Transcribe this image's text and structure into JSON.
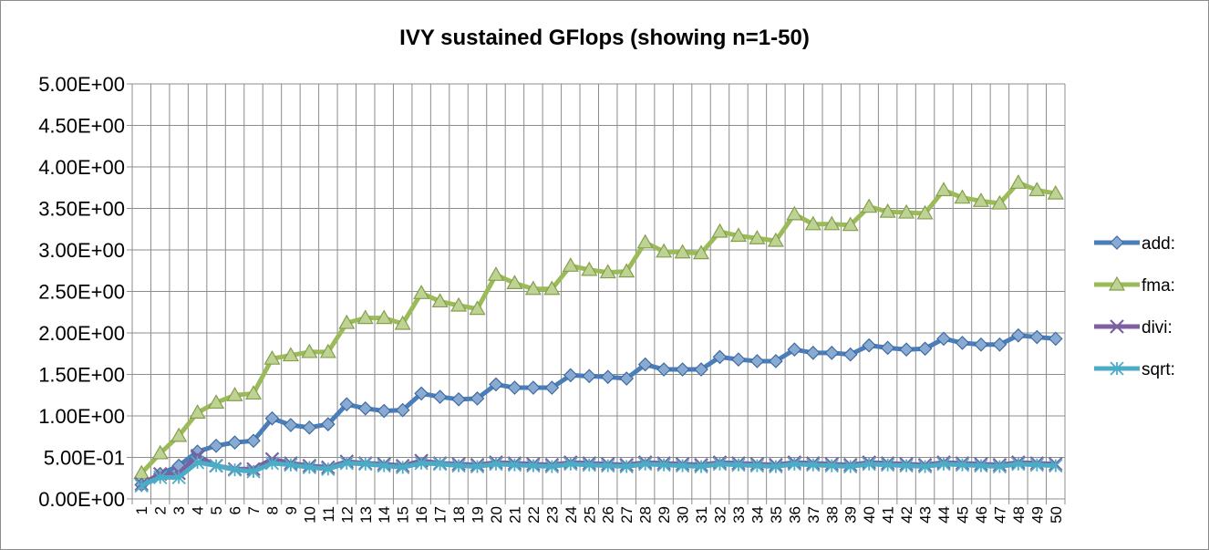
{
  "chart_data": {
    "type": "line",
    "title": "IVY sustained GFlops (showing n=1-50)",
    "xlabel": "",
    "ylabel": "",
    "ylim": [
      0,
      5
    ],
    "grid": true,
    "legend_position": "right",
    "y_ticks": [
      "0.00E+00",
      "5.00E-01",
      "1.00E+00",
      "1.50E+00",
      "2.00E+00",
      "2.50E+00",
      "3.00E+00",
      "3.50E+00",
      "4.00E+00",
      "4.50E+00",
      "5.00E+00"
    ],
    "categories": [
      "1",
      "2",
      "3",
      "4",
      "5",
      "6",
      "7",
      "8",
      "9",
      "10",
      "11",
      "12",
      "13",
      "14",
      "15",
      "16",
      "17",
      "18",
      "19",
      "20",
      "21",
      "22",
      "23",
      "24",
      "25",
      "26",
      "27",
      "28",
      "29",
      "30",
      "31",
      "32",
      "33",
      "34",
      "35",
      "36",
      "37",
      "38",
      "39",
      "40",
      "41",
      "42",
      "43",
      "44",
      "45",
      "46",
      "47",
      "48",
      "49",
      "50"
    ],
    "series": [
      {
        "name": "add:",
        "color": "#4a7ebb",
        "marker": "diamond",
        "values": [
          0.17,
          0.3,
          0.4,
          0.57,
          0.64,
          0.68,
          0.7,
          0.97,
          0.89,
          0.86,
          0.9,
          1.14,
          1.09,
          1.06,
          1.07,
          1.27,
          1.23,
          1.2,
          1.21,
          1.38,
          1.34,
          1.34,
          1.34,
          1.49,
          1.48,
          1.47,
          1.45,
          1.62,
          1.56,
          1.56,
          1.56,
          1.71,
          1.68,
          1.66,
          1.66,
          1.8,
          1.76,
          1.76,
          1.74,
          1.85,
          1.82,
          1.8,
          1.81,
          1.93,
          1.88,
          1.86,
          1.86,
          1.97,
          1.95,
          1.93
        ]
      },
      {
        "name": "fma:",
        "color": "#9bbb59",
        "marker": "triangle",
        "values": [
          0.31,
          0.55,
          0.76,
          1.04,
          1.16,
          1.25,
          1.27,
          1.69,
          1.73,
          1.77,
          1.77,
          2.12,
          2.18,
          2.18,
          2.11,
          2.48,
          2.38,
          2.33,
          2.29,
          2.7,
          2.6,
          2.53,
          2.53,
          2.81,
          2.76,
          2.73,
          2.74,
          3.09,
          2.98,
          2.97,
          2.96,
          3.22,
          3.17,
          3.14,
          3.11,
          3.43,
          3.31,
          3.31,
          3.3,
          3.52,
          3.46,
          3.45,
          3.44,
          3.72,
          3.63,
          3.59,
          3.56,
          3.81,
          3.72,
          3.68
        ]
      },
      {
        "name": "divi:",
        "color": "#7d60a0",
        "marker": "x",
        "values": [
          0.18,
          0.3,
          0.31,
          0.52,
          0.4,
          0.36,
          0.36,
          0.48,
          0.43,
          0.4,
          0.38,
          0.45,
          0.43,
          0.42,
          0.4,
          0.46,
          0.43,
          0.42,
          0.41,
          0.44,
          0.43,
          0.42,
          0.41,
          0.44,
          0.43,
          0.42,
          0.41,
          0.44,
          0.43,
          0.42,
          0.41,
          0.44,
          0.43,
          0.42,
          0.41,
          0.44,
          0.43,
          0.42,
          0.41,
          0.44,
          0.43,
          0.42,
          0.41,
          0.44,
          0.43,
          0.42,
          0.41,
          0.44,
          0.43,
          0.42
        ]
      },
      {
        "name": "sqrt:",
        "color": "#4bacc6",
        "marker": "asterisk",
        "values": [
          0.16,
          0.26,
          0.26,
          0.44,
          0.4,
          0.35,
          0.33,
          0.43,
          0.41,
          0.38,
          0.36,
          0.43,
          0.42,
          0.4,
          0.38,
          0.43,
          0.42,
          0.4,
          0.39,
          0.42,
          0.41,
          0.4,
          0.39,
          0.42,
          0.41,
          0.4,
          0.39,
          0.42,
          0.41,
          0.4,
          0.39,
          0.42,
          0.41,
          0.4,
          0.39,
          0.42,
          0.41,
          0.4,
          0.39,
          0.42,
          0.41,
          0.4,
          0.39,
          0.42,
          0.41,
          0.4,
          0.39,
          0.42,
          0.41,
          0.4
        ]
      }
    ]
  }
}
